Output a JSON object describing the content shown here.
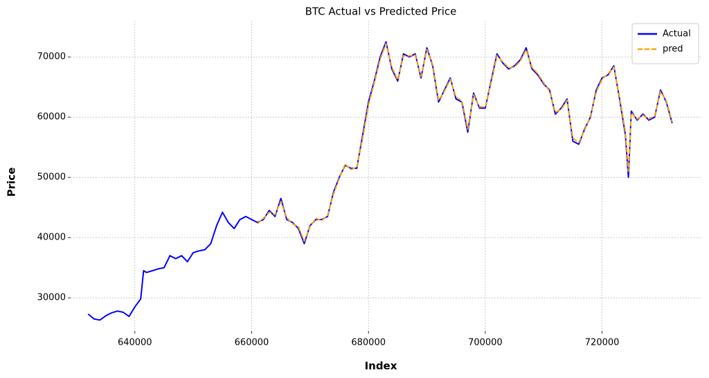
{
  "chart_data": {
    "type": "line",
    "title": "BTC Actual vs Predicted Price",
    "x_label": "Index",
    "y_label": "Price",
    "x": [
      632000,
      633000,
      634000,
      635000,
      636000,
      637000,
      638000,
      639000,
      640000,
      641000,
      641500,
      642000,
      643000,
      644000,
      645000,
      646000,
      647000,
      648000,
      649000,
      650000,
      651000,
      652000,
      653000,
      654000,
      655000,
      656000,
      657000,
      658000,
      659000,
      660000,
      661000,
      662000,
      663000,
      664000,
      665000,
      666000,
      667000,
      668000,
      669000,
      670000,
      671000,
      672000,
      673000,
      674000,
      675000,
      676000,
      677000,
      678000,
      679000,
      680000,
      681000,
      682000,
      683000,
      684000,
      685000,
      686000,
      687000,
      688000,
      689000,
      690000,
      691000,
      692000,
      693000,
      694000,
      695000,
      696000,
      697000,
      698000,
      699000,
      700000,
      701000,
      702000,
      703000,
      704000,
      705000,
      706000,
      707000,
      708000,
      709000,
      710000,
      711000,
      712000,
      713000,
      714000,
      715000,
      716000,
      717000,
      718000,
      719000,
      720000,
      721000,
      722000,
      723000,
      724000,
      724500,
      725000,
      726000,
      727000,
      728000,
      729000,
      730000,
      731000,
      732000
    ],
    "series": [
      {
        "name": "Actual",
        "color": "#0000ff",
        "style": "solid",
        "values": [
          27300,
          26500,
          26300,
          27000,
          27500,
          27800,
          27600,
          26900,
          28500,
          29800,
          34500,
          34200,
          34500,
          34800,
          35000,
          37000,
          36500,
          37000,
          36000,
          37500,
          37800,
          38000,
          39000,
          42000,
          44200,
          42500,
          41500,
          43000,
          43500,
          43000,
          42500,
          43000,
          44500,
          43500,
          46500,
          43000,
          42500,
          41500,
          39000,
          42000,
          43000,
          43000,
          43500,
          47500,
          50000,
          52000,
          51500,
          51500,
          57000,
          62500,
          66000,
          70000,
          72500,
          68000,
          66000,
          70500,
          70000,
          70500,
          66500,
          71500,
          68500,
          62500,
          64500,
          66500,
          63000,
          62500,
          57500,
          64000,
          61500,
          61500,
          66000,
          70500,
          69000,
          68000,
          68500,
          69500,
          71500,
          68000,
          67000,
          65500,
          64500,
          60500,
          61500,
          63000,
          56000,
          55500,
          58000,
          60000,
          64500,
          66500,
          67000,
          68500,
          63000,
          57000,
          50000,
          61000,
          59500,
          60500,
          59500,
          60000,
          64500,
          62500,
          59000
        ]
      },
      {
        "name": "pred",
        "color": "#ffa500",
        "style": "dashed",
        "values": [
          null,
          null,
          null,
          null,
          null,
          null,
          null,
          null,
          null,
          null,
          null,
          null,
          null,
          null,
          null,
          null,
          null,
          null,
          null,
          null,
          null,
          null,
          null,
          null,
          null,
          null,
          null,
          null,
          null,
          null,
          42300,
          43200,
          44200,
          43800,
          46000,
          43300,
          42300,
          41800,
          39400,
          41800,
          43200,
          42800,
          43700,
          47200,
          49800,
          52200,
          51300,
          51700,
          56500,
          62000,
          65700,
          69600,
          72200,
          68300,
          66200,
          70200,
          70200,
          70300,
          66800,
          71200,
          68700,
          62800,
          64300,
          66300,
          63300,
          62700,
          58000,
          63700,
          61700,
          61700,
          65700,
          70200,
          69200,
          68200,
          68300,
          69300,
          71200,
          68300,
          67200,
          65700,
          64300,
          60800,
          61300,
          62800,
          56500,
          55800,
          57800,
          60200,
          64200,
          66300,
          67200,
          68300,
          63300,
          57500,
          51000,
          60700,
          59700,
          60300,
          59700,
          60200,
          64200,
          62700,
          59200
        ]
      }
    ],
    "xlim": [
      629000,
      737000
    ],
    "ylim": [
      24500,
      76000
    ],
    "xticks": [
      640000,
      660000,
      680000,
      700000,
      720000
    ],
    "yticks": [
      30000,
      40000,
      50000,
      60000,
      70000
    ],
    "grid": true,
    "legend": "upper right"
  }
}
